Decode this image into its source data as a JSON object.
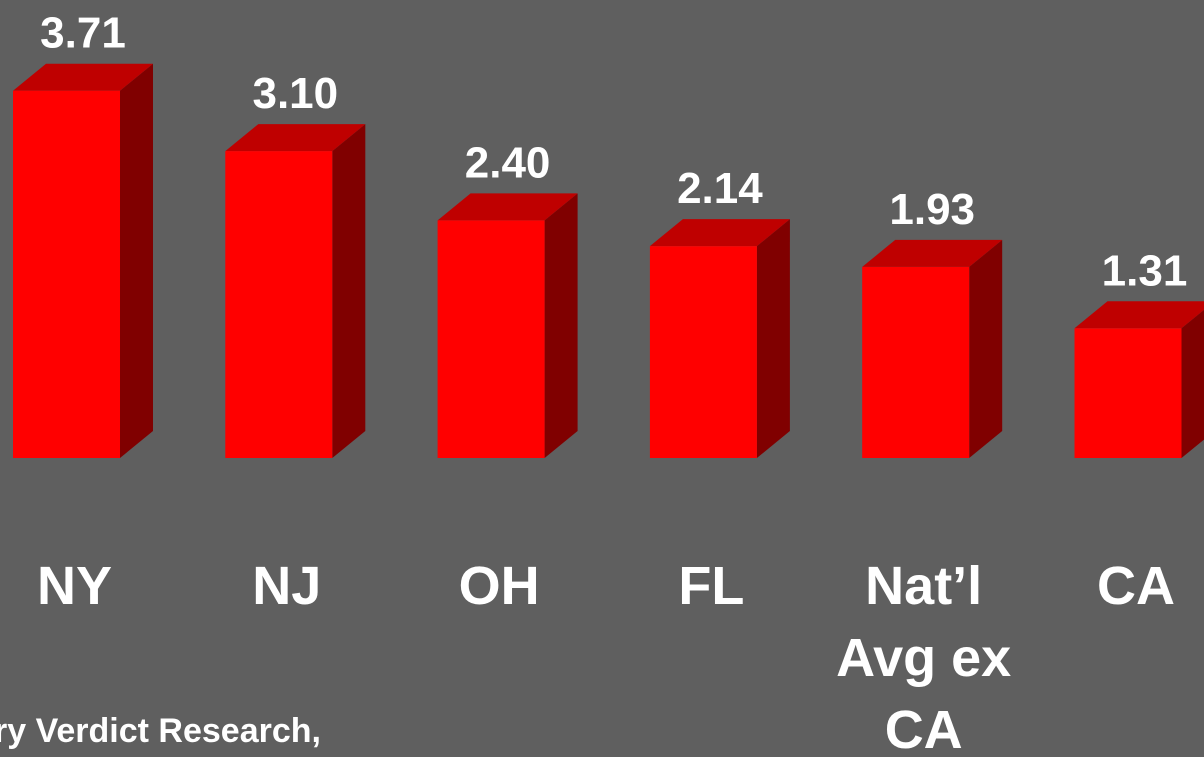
{
  "chart_data": {
    "type": "bar3d",
    "categories": [
      "NY",
      "NJ",
      "OH",
      "FL",
      "Nat’l Avg ex CA",
      "CA"
    ],
    "values": [
      3.71,
      3.1,
      2.4,
      2.14,
      1.93,
      1.31
    ],
    "value_labels": [
      "3.71",
      "3.10",
      "2.40",
      "2.14",
      "1.93",
      "1.31"
    ],
    "ylim": [
      0,
      4
    ],
    "color": "#ff0000",
    "source": "ry Verdict Research,"
  }
}
